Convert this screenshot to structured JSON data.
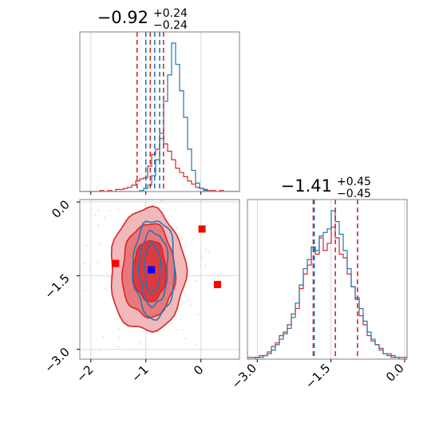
{
  "chart_data": {
    "type": "corner",
    "colors": {
      "red": "#d62728",
      "blue": "#1f77b4",
      "marker_red": "#ff0000",
      "marker_blue": "#0000ff",
      "grid": "#d9d9d9"
    },
    "param1": {
      "title": {
        "main": "−0.92",
        "sup": "+0.24",
        "sub": "−0.24"
      },
      "range": [
        -2.2,
        0.7
      ],
      "ticks": [
        -2,
        -1,
        0
      ],
      "tick_labels": [
        "−2",
        "−1",
        "0"
      ],
      "hist_red": [
        0,
        0,
        0,
        0,
        0,
        1,
        0,
        1,
        0,
        2,
        2,
        3,
        4,
        6,
        10,
        12,
        13,
        24,
        35,
        40,
        55,
        45,
        38,
        30,
        22,
        18,
        14,
        10,
        7,
        4,
        3,
        2,
        1,
        1,
        0,
        1,
        0,
        0,
        0,
        0
      ],
      "hist_blue": [
        0,
        0,
        0,
        0,
        0,
        0,
        0,
        0,
        0,
        0,
        0,
        0,
        0,
        0,
        0,
        1,
        3,
        6,
        15,
        30,
        50,
        85,
        110,
        140,
        120,
        95,
        70,
        40,
        20,
        8,
        3,
        1,
        0,
        0,
        0,
        0,
        0,
        0,
        0,
        0
      ],
      "quantiles_red": [
        -1.16,
        -0.92,
        -0.68
      ],
      "quantiles_blue": [
        -1.0,
        -0.84,
        -0.75
      ]
    },
    "param2": {
      "title": {
        "main": "−1.41",
        "sup": "+0.45",
        "sub": "−0.45"
      },
      "range": [
        -3.2,
        0.05
      ],
      "ticks": [
        -3.0,
        -1.5,
        0.0
      ],
      "tick_labels": [
        "−3.0",
        "−1.5",
        "0.0"
      ],
      "hist_red": [
        1,
        1,
        1,
        2,
        2,
        4,
        7,
        9,
        13,
        15,
        19,
        25,
        28,
        39,
        47,
        52,
        62,
        58,
        67,
        60,
        64,
        73,
        67,
        58,
        56,
        47,
        40,
        33,
        24,
        19,
        13,
        10,
        8,
        6,
        3,
        3,
        2,
        1,
        1,
        1
      ],
      "hist_blue": [
        0,
        0,
        1,
        1,
        2,
        3,
        5,
        8,
        11,
        14,
        17,
        23,
        31,
        41,
        50,
        55,
        62,
        60,
        68,
        70,
        72,
        82,
        76,
        69,
        60,
        50,
        40,
        34,
        28,
        21,
        15,
        11,
        8,
        5,
        3,
        2,
        1,
        1,
        0,
        0
      ],
      "quantiles_red": [
        -1.86,
        -1.41,
        -0.96
      ],
      "quantiles_blue": [
        -1.84
      ]
    },
    "joint": {
      "xrange": [
        -2.2,
        0.7
      ],
      "yrange": [
        -3.2,
        0.05
      ],
      "xticks": [
        -2,
        -1,
        0
      ],
      "xtick_labels": [
        "−2",
        "−1",
        "0"
      ],
      "yticks": [
        -3.0,
        -1.5,
        0.0
      ],
      "ytick_labels": [
        "−3.0",
        "−1.5",
        "0.0"
      ],
      "red_contours": [
        {
          "cx": -0.97,
          "cy": -1.4,
          "rx": 0.68,
          "ry": 1.25
        },
        {
          "cx": -0.95,
          "cy": -1.4,
          "rx": 0.48,
          "ry": 0.95
        },
        {
          "cx": -0.93,
          "cy": -1.4,
          "rx": 0.3,
          "ry": 0.62
        }
      ],
      "blue_contours": [
        {
          "cx": -0.85,
          "cy": -1.35,
          "rx": 0.38,
          "ry": 1.0
        },
        {
          "cx": -0.86,
          "cy": -1.35,
          "rx": 0.26,
          "ry": 0.75
        },
        {
          "cx": -0.88,
          "cy": -1.35,
          "rx": 0.14,
          "ry": 0.5
        }
      ],
      "points_red": [
        {
          "x": -1.55,
          "y": -1.25
        },
        {
          "x": 0.02,
          "y": -0.55
        },
        {
          "x": 0.3,
          "y": -1.68
        }
      ],
      "points_blue": [
        {
          "x": -0.9,
          "y": -1.38
        }
      ]
    }
  }
}
